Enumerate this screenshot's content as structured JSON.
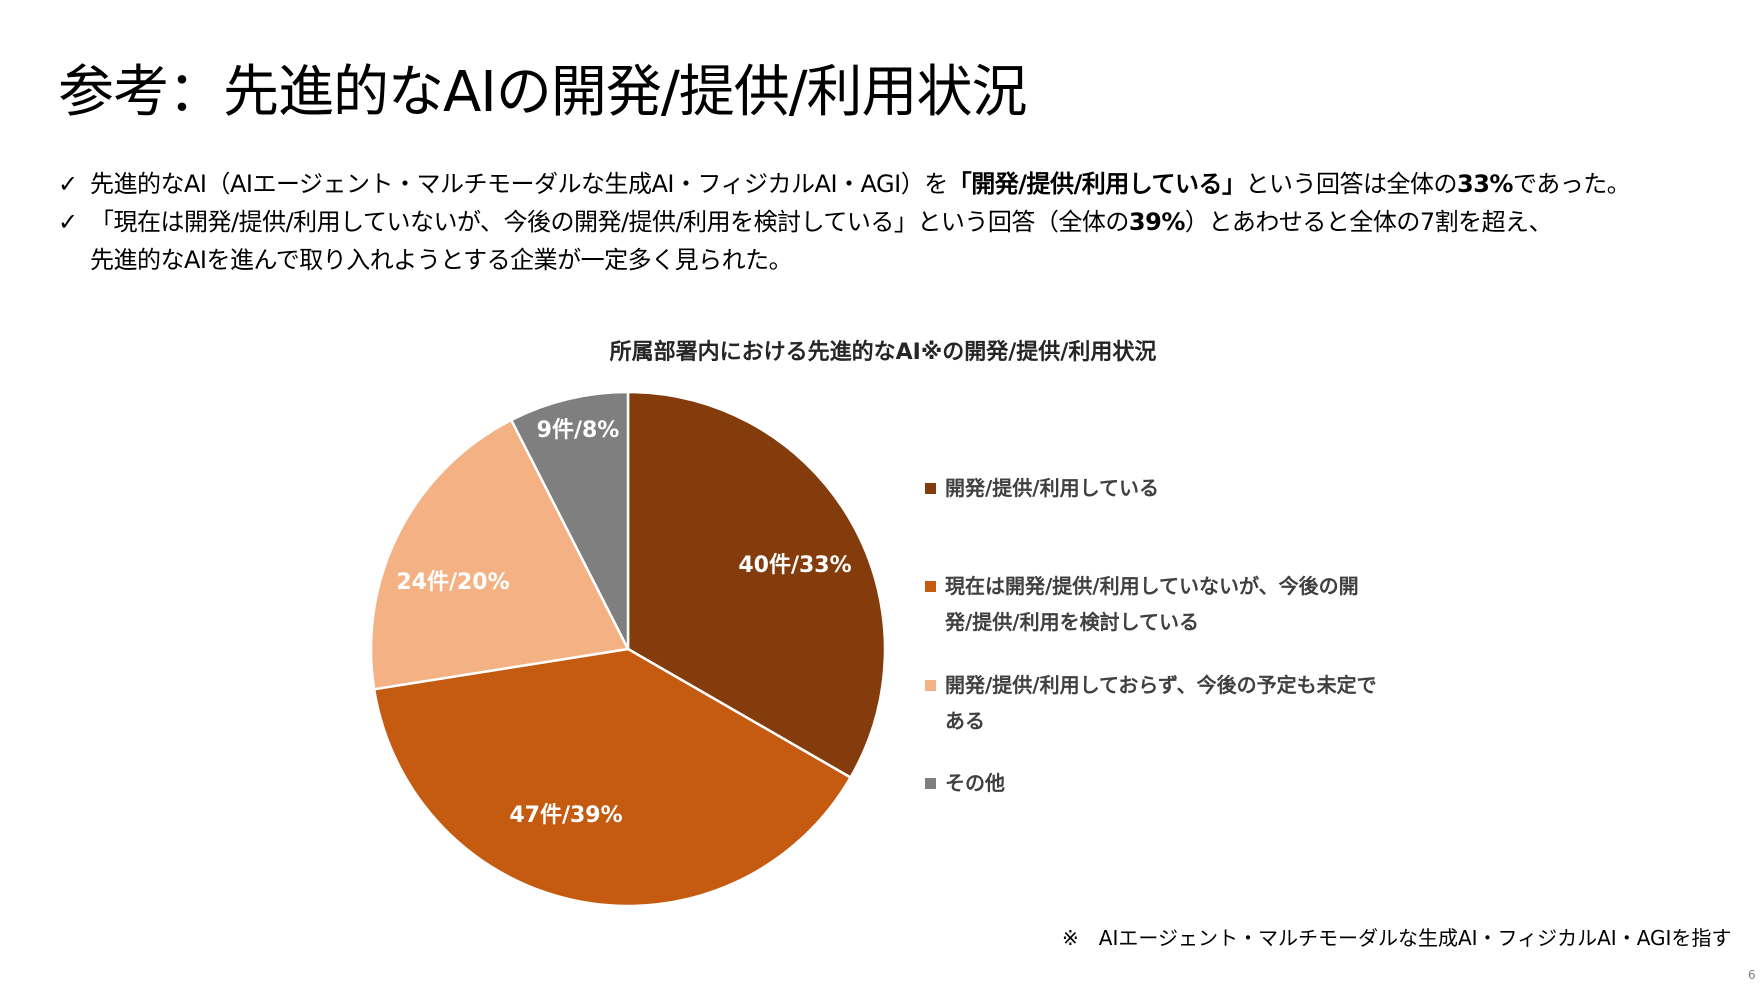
{
  "title": "参考：先進的なAIの開発/提供/利用状況",
  "bullets": [
    {
      "check": "✓",
      "parts": [
        {
          "text": "先進的なAI（AIエージェント・マルチモーダルな生成AI・フィジカルAI・AGI）を",
          "bold": false
        },
        {
          "text": "「開発/提供/利用している」",
          "bold": true
        },
        {
          "text": "という回答は全体の",
          "bold": false
        },
        {
          "text": "33%",
          "bold": true
        },
        {
          "text": "であった。",
          "bold": false
        }
      ]
    },
    {
      "check": "✓",
      "parts": [
        {
          "text": "「現在は開発/提供/利用していないが、今後の開発/提供/利用を検討している」という回答（全体の",
          "bold": false
        },
        {
          "text": "39%",
          "bold": true
        },
        {
          "text": "）とあわせると全体の7割を超え、",
          "bold": false
        }
      ],
      "continuation": "先進的なAIを進んで取り入れようとする企業が一定多く見られた。"
    }
  ],
  "chart_data": {
    "type": "pie",
    "title": "所属部署内における先進的なAI※の開発/提供/利用状況",
    "start": "top",
    "direction": "clockwise",
    "legend_position": "right",
    "slices": [
      {
        "name": "開発/提供/利用している",
        "count": 40,
        "percent": 33,
        "label": "40件/33%",
        "color": "#843C0C"
      },
      {
        "name": "現在は開発/提供/利用していないが、今後の開発/提供/利用を検討している",
        "count": 47,
        "percent": 39,
        "label": "47件/39%",
        "color": "#C55A11"
      },
      {
        "name": "開発/提供/利用しておらず、今後の予定も未定である",
        "count": 24,
        "percent": 20,
        "label": "24件/20%",
        "color": "#F4B183"
      },
      {
        "name": "その他",
        "count": 9,
        "percent": 8,
        "label": "9件/8%",
        "color": "#7F7F7F"
      }
    ]
  },
  "legend_lines": [
    [
      "開発/提供/利用している"
    ],
    [
      "現在は開発/提供/利用していないが、今後の開",
      "発/提供/利用を検討している"
    ],
    [
      "開発/提供/利用しておらず、今後の予定も未定で",
      "ある"
    ],
    [
      "その他"
    ]
  ],
  "footnote": "※　AIエージェント・マルチモーダルな生成AI・フィジカルAI・AGIを指す",
  "page_number": "6"
}
